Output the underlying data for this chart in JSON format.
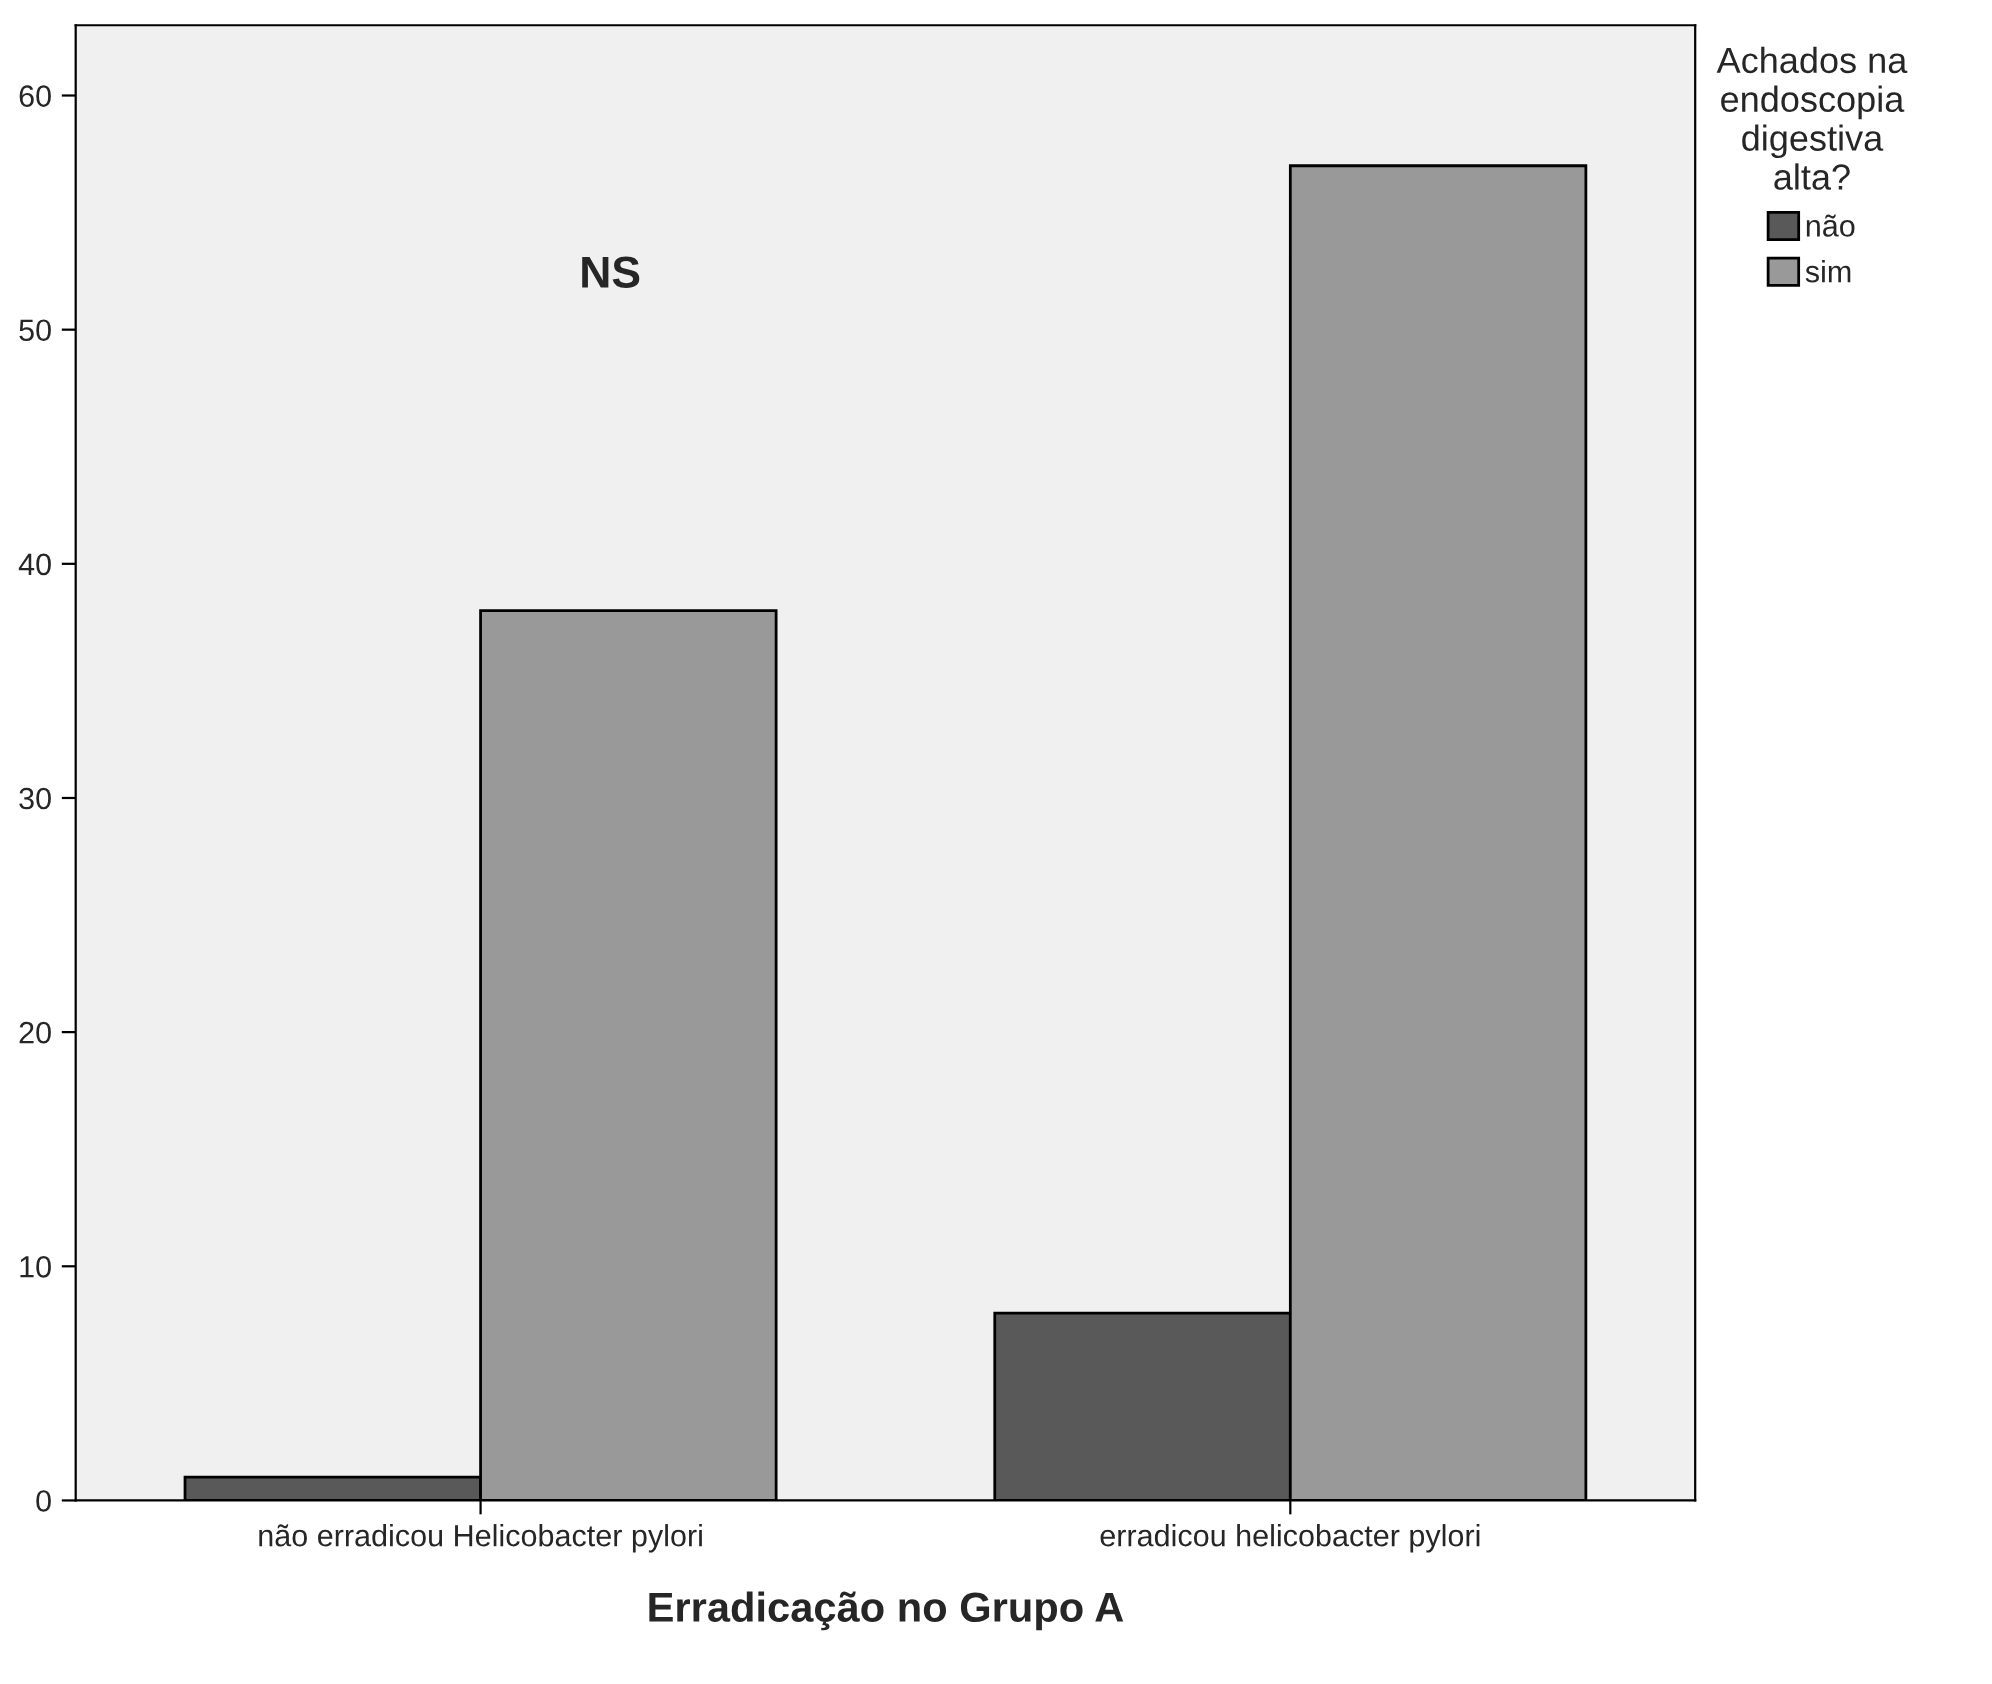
{
  "chart_data": {
    "type": "bar",
    "xlabel": "Erradicação no Grupo A",
    "legend_title": "Achados na\nendoscopia\ndigestiva\nalta?",
    "categories": [
      "não erradicou Helicobacter pylori",
      "erradicou helicobacter pylori"
    ],
    "series": [
      {
        "name": "não",
        "color": "#595959",
        "values": [
          1,
          8
        ]
      },
      {
        "name": "sim",
        "color": "#999999",
        "values": [
          38,
          57
        ]
      }
    ],
    "ylim": [
      0,
      63
    ],
    "yticks": [
      0,
      10,
      20,
      30,
      40,
      50,
      60
    ],
    "annotations": [
      "NS"
    ],
    "grid": false,
    "legend": "right"
  }
}
